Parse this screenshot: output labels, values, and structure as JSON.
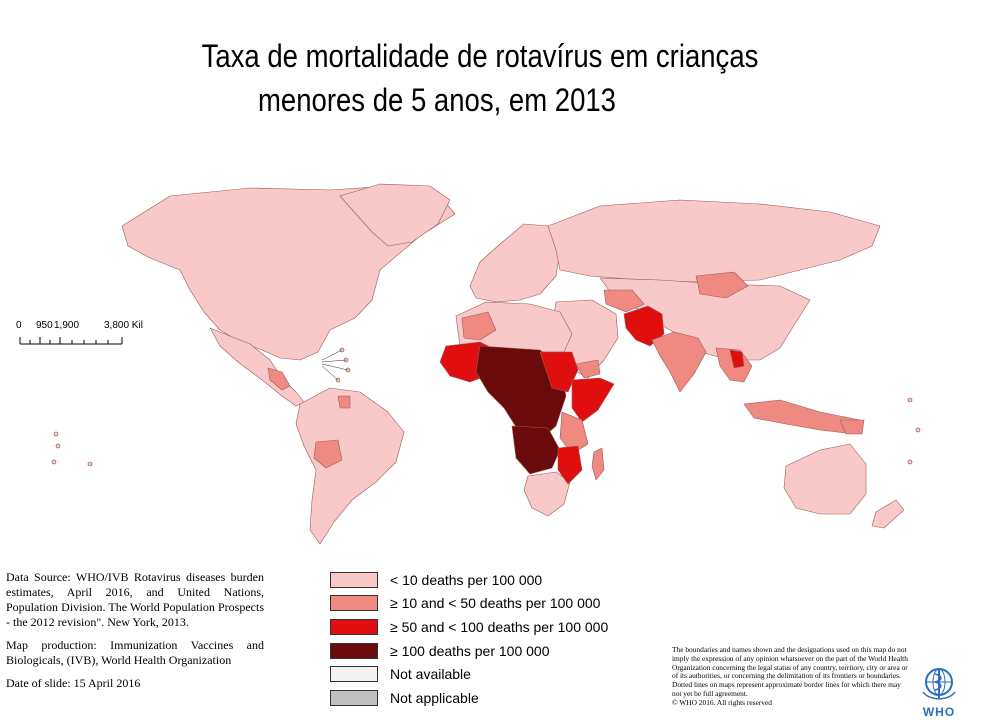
{
  "title": {
    "line1": "Taxa de mortalidade de rotavírus em crianças",
    "line2": "menores de 5 anos, em 2013"
  },
  "scale_bar": {
    "labels": [
      "0",
      "950",
      "1,900",
      "3,800 Kil"
    ]
  },
  "source": {
    "data_source": "Data Source: WHO/IVB Rotavirus diseases burden estimates, April 2016, and United Nations, Population Division. The World Population Prospects - the 2012 revision\". New York, 2013.",
    "map_production": "Map production: Immunization Vaccines and Biologicals, (IVB), World Health Organization",
    "date_of_slide": "Date of slide: 15 April 2016"
  },
  "legend": {
    "items": [
      {
        "label": "< 10 deaths per 100 000",
        "color": "#f9c9c9"
      },
      {
        "label": "≥ 10 and < 50 deaths per 100 000",
        "color": "#ef8a80"
      },
      {
        "label": "≥ 50 and < 100 deaths per 100 000",
        "color": "#e10e10"
      },
      {
        "label": "≥ 100 deaths per 100 000",
        "color": "#6a0a0a"
      },
      {
        "label": "Not available",
        "color": "#f2f2f2"
      },
      {
        "label": "Not applicable",
        "color": "#c0c0c0"
      }
    ]
  },
  "disclaimer": {
    "text": "The boundaries and names shown and the designations used on this map do not imply the expression of any opinion whatsoever on the part of the World Health Organization concerning the legal status of any country, territory, city or area or of its authorities, or concerning the delimitation of its frontiers or boundaries. Dotted lines on maps represent approximate border lines for which there may not yet be full agreement.",
    "copyright": "© WHO 2016. All rights reserved"
  },
  "logo": {
    "label": "WHO",
    "color": "#2a6fb7"
  }
}
